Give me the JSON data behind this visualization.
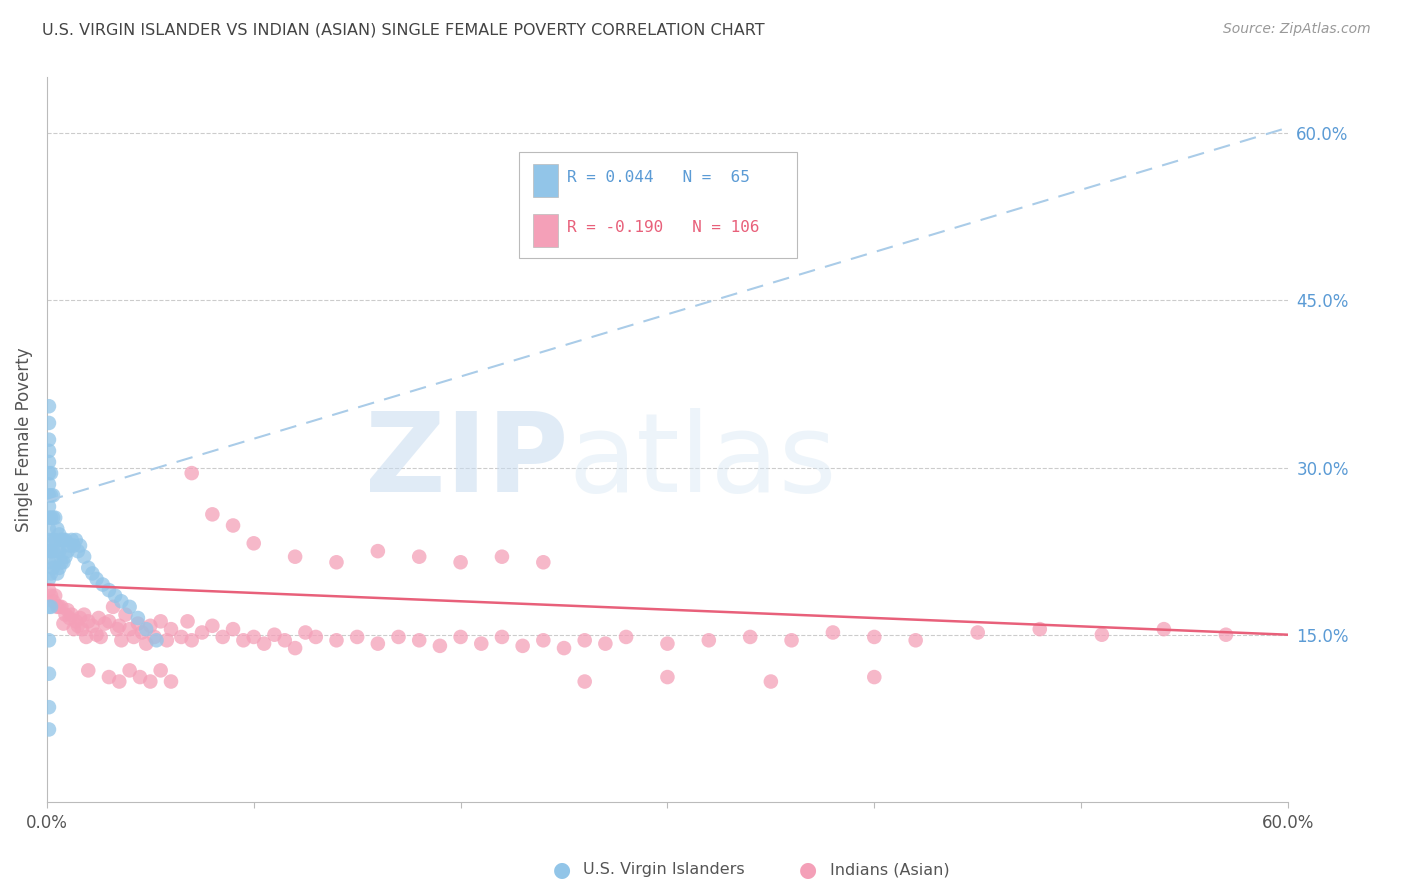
{
  "title": "U.S. VIRGIN ISLANDER VS INDIAN (ASIAN) SINGLE FEMALE POVERTY CORRELATION CHART",
  "source": "Source: ZipAtlas.com",
  "ylabel": "Single Female Poverty",
  "ytick_labels": [
    "60.0%",
    "45.0%",
    "30.0%",
    "15.0%"
  ],
  "ytick_values": [
    0.6,
    0.45,
    0.3,
    0.15
  ],
  "xlim": [
    0.0,
    0.6
  ],
  "ylim": [
    0.0,
    0.65
  ],
  "blue_color": "#92C5E8",
  "pink_color": "#F4A0B8",
  "blue_line_color": "#5B9BD5",
  "pink_line_color": "#E8607A",
  "grid_color": "#CCCCCC",
  "title_color": "#444444",
  "right_label_color": "#5B9BD5",
  "blue_line_x0": 0.0,
  "blue_line_y0": 0.27,
  "blue_line_x1": 0.6,
  "blue_line_y1": 0.605,
  "pink_line_x0": 0.0,
  "pink_line_y0": 0.195,
  "pink_line_x1": 0.6,
  "pink_line_y1": 0.15,
  "blue_scatter_x": [
    0.001,
    0.001,
    0.001,
    0.001,
    0.001,
    0.001,
    0.001,
    0.001,
    0.001,
    0.001,
    0.001,
    0.001,
    0.001,
    0.001,
    0.001,
    0.001,
    0.001,
    0.001,
    0.001,
    0.001,
    0.002,
    0.002,
    0.002,
    0.002,
    0.002,
    0.002,
    0.003,
    0.003,
    0.003,
    0.003,
    0.003,
    0.004,
    0.004,
    0.004,
    0.005,
    0.005,
    0.005,
    0.006,
    0.006,
    0.006,
    0.007,
    0.007,
    0.008,
    0.008,
    0.009,
    0.009,
    0.01,
    0.011,
    0.012,
    0.013,
    0.014,
    0.015,
    0.016,
    0.018,
    0.02,
    0.022,
    0.024,
    0.027,
    0.03,
    0.033,
    0.036,
    0.04,
    0.044,
    0.048,
    0.053
  ],
  "blue_scatter_y": [
    0.065,
    0.085,
    0.115,
    0.145,
    0.175,
    0.2,
    0.215,
    0.225,
    0.235,
    0.245,
    0.255,
    0.265,
    0.275,
    0.285,
    0.295,
    0.305,
    0.315,
    0.325,
    0.34,
    0.355,
    0.175,
    0.205,
    0.225,
    0.255,
    0.275,
    0.295,
    0.21,
    0.225,
    0.235,
    0.255,
    0.275,
    0.215,
    0.235,
    0.255,
    0.205,
    0.225,
    0.245,
    0.21,
    0.225,
    0.24,
    0.215,
    0.235,
    0.215,
    0.235,
    0.22,
    0.235,
    0.225,
    0.23,
    0.235,
    0.23,
    0.235,
    0.225,
    0.23,
    0.22,
    0.21,
    0.205,
    0.2,
    0.195,
    0.19,
    0.185,
    0.18,
    0.175,
    0.165,
    0.155,
    0.145
  ],
  "pink_scatter_x": [
    0.001,
    0.002,
    0.003,
    0.004,
    0.005,
    0.006,
    0.007,
    0.008,
    0.009,
    0.01,
    0.011,
    0.012,
    0.013,
    0.014,
    0.015,
    0.016,
    0.017,
    0.018,
    0.019,
    0.02,
    0.022,
    0.024,
    0.025,
    0.026,
    0.028,
    0.03,
    0.032,
    0.034,
    0.035,
    0.036,
    0.038,
    0.04,
    0.042,
    0.044,
    0.046,
    0.048,
    0.05,
    0.052,
    0.055,
    0.058,
    0.06,
    0.065,
    0.068,
    0.07,
    0.075,
    0.08,
    0.085,
    0.09,
    0.095,
    0.1,
    0.105,
    0.11,
    0.115,
    0.12,
    0.125,
    0.13,
    0.14,
    0.15,
    0.16,
    0.17,
    0.18,
    0.19,
    0.2,
    0.21,
    0.22,
    0.23,
    0.24,
    0.25,
    0.26,
    0.27,
    0.28,
    0.3,
    0.32,
    0.34,
    0.36,
    0.38,
    0.4,
    0.42,
    0.45,
    0.48,
    0.51,
    0.54,
    0.57,
    0.02,
    0.03,
    0.035,
    0.04,
    0.045,
    0.05,
    0.055,
    0.06,
    0.07,
    0.08,
    0.09,
    0.1,
    0.12,
    0.14,
    0.16,
    0.18,
    0.2,
    0.22,
    0.24,
    0.26,
    0.3,
    0.35,
    0.4
  ],
  "pink_scatter_y": [
    0.19,
    0.185,
    0.18,
    0.185,
    0.175,
    0.175,
    0.175,
    0.16,
    0.168,
    0.172,
    0.165,
    0.168,
    0.155,
    0.162,
    0.158,
    0.165,
    0.155,
    0.168,
    0.148,
    0.162,
    0.158,
    0.15,
    0.165,
    0.148,
    0.16,
    0.162,
    0.175,
    0.155,
    0.158,
    0.145,
    0.168,
    0.155,
    0.148,
    0.16,
    0.152,
    0.142,
    0.158,
    0.148,
    0.162,
    0.145,
    0.155,
    0.148,
    0.162,
    0.145,
    0.152,
    0.158,
    0.148,
    0.155,
    0.145,
    0.148,
    0.142,
    0.15,
    0.145,
    0.138,
    0.152,
    0.148,
    0.145,
    0.148,
    0.142,
    0.148,
    0.145,
    0.14,
    0.148,
    0.142,
    0.148,
    0.14,
    0.145,
    0.138,
    0.145,
    0.142,
    0.148,
    0.142,
    0.145,
    0.148,
    0.145,
    0.152,
    0.148,
    0.145,
    0.152,
    0.155,
    0.15,
    0.155,
    0.15,
    0.118,
    0.112,
    0.108,
    0.118,
    0.112,
    0.108,
    0.118,
    0.108,
    0.295,
    0.258,
    0.248,
    0.232,
    0.22,
    0.215,
    0.225,
    0.22,
    0.215,
    0.22,
    0.215,
    0.108,
    0.112,
    0.108,
    0.112
  ]
}
